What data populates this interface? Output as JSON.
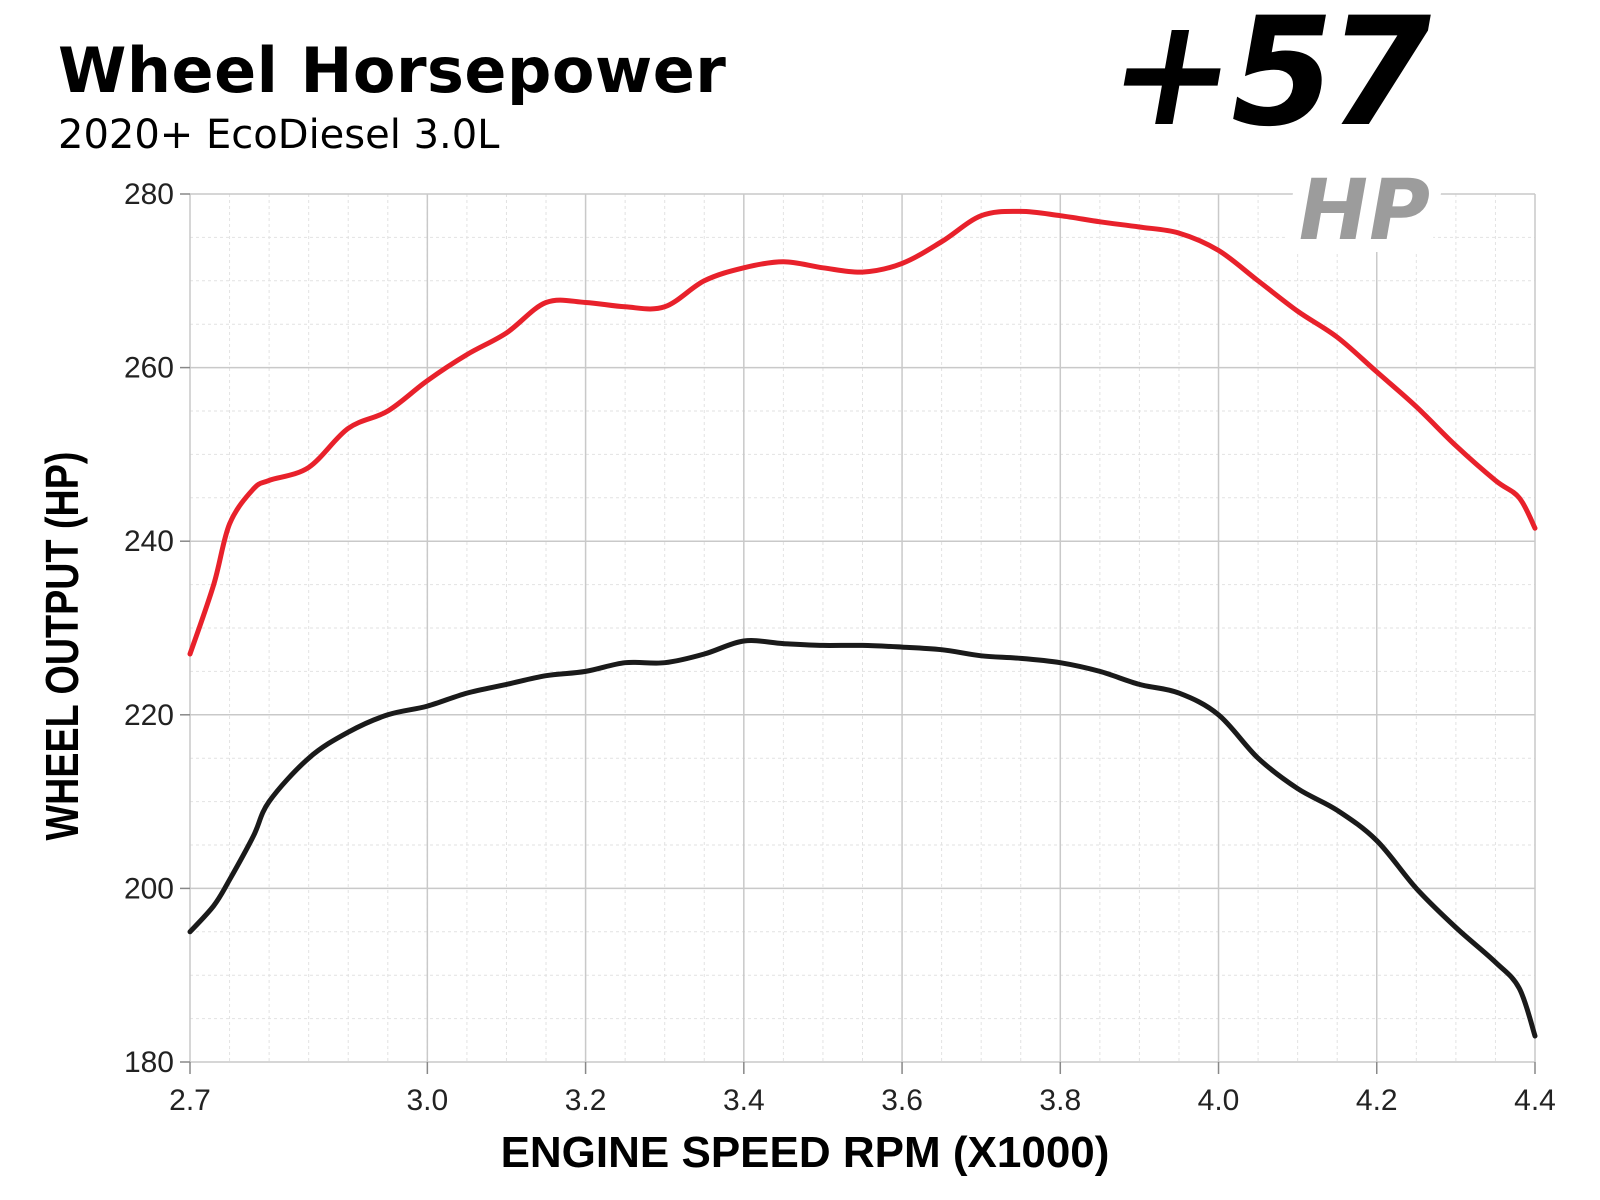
{
  "header": {
    "title": "Wheel Horsepower",
    "subtitle": "2020+ EcoDiesel 3.0L",
    "gain_value": "+57",
    "gain_unit": "HP"
  },
  "colors": {
    "tuned": "#e8212b",
    "stock": "#1a1a1a",
    "grid_major": "#c9c9c9",
    "grid_minor": "#e2e2e2",
    "gain_unit": "#9c9c9c"
  },
  "chart_data": {
    "type": "line",
    "xlabel": "ENGINE SPEED RPM (X1000)",
    "ylabel": "WHEEL OUTPUT (HP)",
    "xlim": [
      2.7,
      4.4
    ],
    "ylim": [
      180,
      280
    ],
    "x_ticks": [
      2.7,
      3.0,
      3.2,
      3.4,
      3.6,
      3.8,
      4.0,
      4.2,
      4.4
    ],
    "x_tick_labels": [
      "2.7",
      "3.0",
      "3.2",
      "3.4",
      "3.6",
      "3.8",
      "4.0",
      "4.2",
      "4.4"
    ],
    "y_ticks": [
      180,
      200,
      220,
      240,
      260,
      280
    ],
    "y_tick_labels": [
      "180",
      "200",
      "220",
      "240",
      "260",
      "280"
    ],
    "grid": true,
    "legend": "none",
    "series": [
      {
        "color": "#e8212b",
        "x": [
          2.7,
          2.73,
          2.75,
          2.78,
          2.8,
          2.85,
          2.9,
          2.95,
          3.0,
          3.05,
          3.1,
          3.15,
          3.2,
          3.25,
          3.3,
          3.35,
          3.4,
          3.45,
          3.5,
          3.55,
          3.6,
          3.65,
          3.7,
          3.75,
          3.8,
          3.85,
          3.9,
          3.95,
          4.0,
          4.05,
          4.1,
          4.15,
          4.2,
          4.25,
          4.3,
          4.35,
          4.38,
          4.4
        ],
        "y": [
          227,
          235,
          242,
          246,
          247,
          248.5,
          253,
          255,
          258.5,
          261.5,
          264,
          267.5,
          267.5,
          267,
          267,
          270,
          271.5,
          272.2,
          271.5,
          271,
          272,
          274.5,
          277.5,
          278,
          277.5,
          276.8,
          276.2,
          275.5,
          273.5,
          270,
          266.5,
          263.5,
          259.5,
          255.5,
          251,
          247,
          245,
          241.5
        ]
      },
      {
        "color": "#1a1a1a",
        "x": [
          2.7,
          2.73,
          2.75,
          2.78,
          2.8,
          2.85,
          2.9,
          2.95,
          3.0,
          3.05,
          3.1,
          3.15,
          3.2,
          3.25,
          3.3,
          3.35,
          3.4,
          3.45,
          3.5,
          3.55,
          3.6,
          3.65,
          3.7,
          3.75,
          3.8,
          3.85,
          3.9,
          3.95,
          4.0,
          4.05,
          4.1,
          4.15,
          4.2,
          4.25,
          4.3,
          4.35,
          4.38,
          4.4
        ],
        "y": [
          195,
          198,
          201,
          206,
          210,
          215,
          218,
          220,
          221,
          222.5,
          223.5,
          224.5,
          225,
          226,
          226,
          227,
          228.5,
          228.2,
          228,
          228,
          227.8,
          227.5,
          226.8,
          226.5,
          226,
          225,
          223.5,
          222.5,
          220,
          215,
          211.5,
          209,
          205.5,
          200,
          195.5,
          191.5,
          188.5,
          183
        ]
      }
    ]
  }
}
